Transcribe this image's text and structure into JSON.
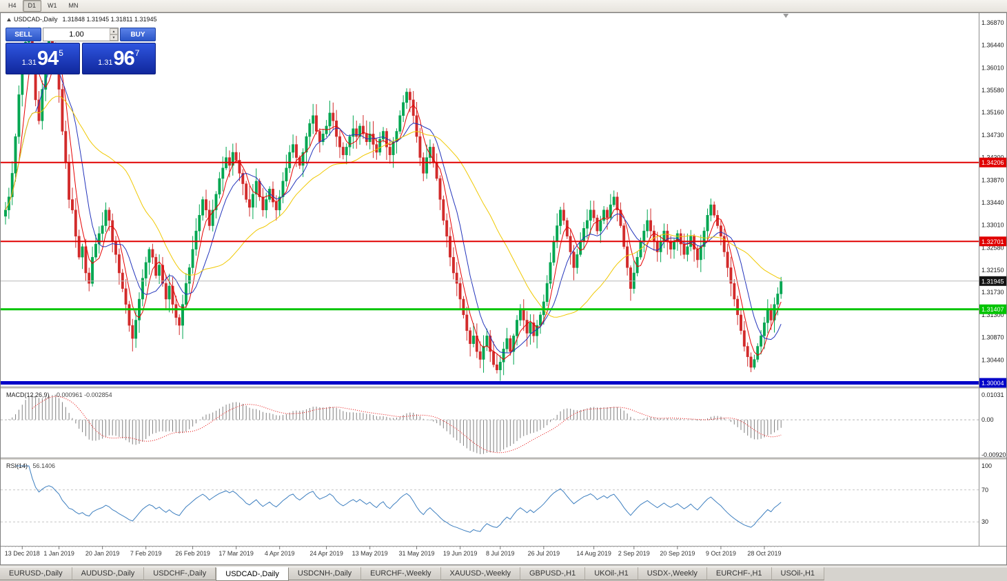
{
  "window": {
    "timeframes": [
      "H4",
      "D1",
      "W1",
      "MN"
    ],
    "active_timeframe": "D1"
  },
  "chart": {
    "title": "USDCAD-,Daily",
    "ohlc": "1.31848 1.31945 1.31811 1.31945"
  },
  "trade_panel": {
    "sell_label": "SELL",
    "buy_label": "BUY",
    "volume": "1.00",
    "sell_price": {
      "prefix": "1.31",
      "main": "94",
      "sup": "5"
    },
    "buy_price": {
      "prefix": "1.31",
      "main": "96",
      "sup": "7"
    }
  },
  "price_axis": {
    "ticks": [
      "1.36870",
      "1.36440",
      "1.36010",
      "1.35580",
      "1.35160",
      "1.34730",
      "1.34300",
      "1.33870",
      "1.33440",
      "1.33010",
      "1.32580",
      "1.32150",
      "1.31730",
      "1.31300",
      "1.30870",
      "1.30440"
    ]
  },
  "levels": [
    {
      "label": "1.34206",
      "price": 1.34206,
      "color": "#e00000",
      "width": 2,
      "text": "#ffffff"
    },
    {
      "label": "1.32701",
      "price": 1.32701,
      "color": "#e00000",
      "width": 2,
      "text": "#ffffff"
    },
    {
      "label": "1.31407",
      "price": 1.31407,
      "color": "#00c400",
      "width": 3,
      "text": "#ffffff"
    },
    {
      "label": "1.30004",
      "price": 1.30004,
      "color": "#0000c8",
      "width": 5,
      "text": "#ffffff"
    }
  ],
  "current_price": {
    "label": "1.31945",
    "price": 1.31945,
    "line_color": "#b8b8b8",
    "tag_color": "#141414"
  },
  "chart_data": {
    "type": "candlestick",
    "symbol": "USDCAD",
    "timeframe": "Daily",
    "ylim": [
      1.298,
      1.37
    ],
    "wick_seed": 11,
    "colors": {
      "up": "#00a651",
      "down": "#d22b2b",
      "macd_main": "#7f7f7f",
      "macd_signal": "#e60000",
      "rsi": "#3c7ebf"
    },
    "moving_averages": [
      {
        "period": 5,
        "color": "#e60000"
      },
      {
        "period": 10,
        "color": "#2233bb"
      },
      {
        "period": 34,
        "color": "#f0c800"
      }
    ],
    "closes": [
      1.333,
      1.3355,
      1.34,
      1.347,
      1.355,
      1.361,
      1.365,
      1.366,
      1.36,
      1.354,
      1.35,
      1.356,
      1.362,
      1.3655,
      1.364,
      1.36,
      1.356,
      1.348,
      1.342,
      1.335,
      1.333,
      1.328,
      1.324,
      1.326,
      1.321,
      1.319,
      1.324,
      1.3265,
      1.3285,
      1.33,
      1.333,
      1.331,
      1.327,
      1.3245,
      1.321,
      1.318,
      1.315,
      1.311,
      1.3085,
      1.312,
      1.316,
      1.32,
      1.323,
      1.3255,
      1.324,
      1.3205,
      1.3225,
      1.319,
      1.316,
      1.3185,
      1.315,
      1.3125,
      1.311,
      1.315,
      1.319,
      1.322,
      1.3255,
      1.329,
      1.332,
      1.335,
      1.333,
      1.33,
      1.333,
      1.336,
      1.339,
      1.341,
      1.343,
      1.3415,
      1.344,
      1.3425,
      1.34,
      1.338,
      1.335,
      1.3335,
      1.336,
      1.3385,
      1.3355,
      1.333,
      1.335,
      1.337,
      1.3345,
      1.333,
      1.3355,
      1.3385,
      1.341,
      1.344,
      1.3455,
      1.343,
      1.3415,
      1.344,
      1.347,
      1.3495,
      1.351,
      1.348,
      1.346,
      1.3475,
      1.349,
      1.3515,
      1.35,
      1.347,
      1.345,
      1.3435,
      1.345,
      1.347,
      1.3485,
      1.347,
      1.349,
      1.3475,
      1.346,
      1.3475,
      1.3455,
      1.344,
      1.3465,
      1.348,
      1.345,
      1.3435,
      1.346,
      1.348,
      1.351,
      1.3535,
      1.3555,
      1.354,
      1.351,
      1.347,
      1.343,
      1.34,
      1.343,
      1.345,
      1.342,
      1.339,
      1.335,
      1.331,
      1.328,
      1.324,
      1.321,
      1.319,
      1.316,
      1.313,
      1.31,
      1.3075,
      1.309,
      1.306,
      1.3045,
      1.307,
      1.309,
      1.306,
      1.3035,
      1.3025,
      1.304,
      1.3065,
      1.3085,
      1.306,
      1.309,
      1.312,
      1.314,
      1.312,
      1.3095,
      1.3115,
      1.309,
      1.311,
      1.313,
      1.3155,
      1.319,
      1.323,
      1.327,
      1.33,
      1.333,
      1.331,
      1.328,
      1.325,
      1.322,
      1.3245,
      1.327,
      1.3295,
      1.331,
      1.333,
      1.3315,
      1.329,
      1.331,
      1.333,
      1.3315,
      1.334,
      1.3355,
      1.333,
      1.33,
      1.326,
      1.322,
      1.318,
      1.321,
      1.324,
      1.327,
      1.329,
      1.331,
      1.329,
      1.327,
      1.325,
      1.327,
      1.329,
      1.327,
      1.3255,
      1.327,
      1.3285,
      1.3265,
      1.3245,
      1.326,
      1.328,
      1.3255,
      1.3235,
      1.326,
      1.329,
      1.332,
      1.334,
      1.332,
      1.33,
      1.328,
      1.325,
      1.322,
      1.319,
      1.316,
      1.313,
      1.31,
      1.307,
      1.305,
      1.303,
      1.3045,
      1.307,
      1.309,
      1.3115,
      1.314,
      1.312,
      1.315,
      1.317,
      1.31945
    ],
    "x_labels": [
      {
        "text": "13 Dec 2018",
        "i": 5
      },
      {
        "text": "1 Jan 2019",
        "i": 16
      },
      {
        "text": "20 Jan 2019",
        "i": 29
      },
      {
        "text": "7 Feb 2019",
        "i": 42
      },
      {
        "text": "26 Feb 2019",
        "i": 56
      },
      {
        "text": "17 Mar 2019",
        "i": 69
      },
      {
        "text": "4 Apr 2019",
        "i": 82
      },
      {
        "text": "24 Apr 2019",
        "i": 96
      },
      {
        "text": "13 May 2019",
        "i": 109
      },
      {
        "text": "31 May 2019",
        "i": 123
      },
      {
        "text": "19 Jun 2019",
        "i": 136
      },
      {
        "text": "8 Jul 2019",
        "i": 148
      },
      {
        "text": "26 Jul 2019",
        "i": 161
      },
      {
        "text": "14 Aug 2019",
        "i": 176
      },
      {
        "text": "2 Sep 2019",
        "i": 188
      },
      {
        "text": "20 Sep 2019",
        "i": 201
      },
      {
        "text": "9 Oct 2019",
        "i": 214
      },
      {
        "text": "28 Oct 2019",
        "i": 227
      }
    ]
  },
  "macd": {
    "title": "MACD(12,26,9)",
    "values": "-0.000961 -0.002854",
    "axis_top": "0.01031",
    "axis_zero": "0.00",
    "axis_bottom": "-0.00920",
    "params": {
      "fast": 12,
      "slow": 26,
      "signal": 9
    }
  },
  "rsi": {
    "title": "RSI(14)",
    "value": "56.1406",
    "period": 14,
    "axis": [
      "100",
      "70",
      "30"
    ],
    "levels": [
      70,
      30
    ]
  },
  "tabs": {
    "items": [
      "EURUSD-,Daily",
      "AUDUSD-,Daily",
      "USDCHF-,Daily",
      "USDCAD-,Daily",
      "USDCNH-,Daily",
      "EURCHF-,Weekly",
      "XAUUSD-,Weekly",
      "GBPUSD-,H1",
      "UKOil-,H1",
      "USDX-,Weekly",
      "EURCHF-,H1",
      "USOil-,H1"
    ],
    "active": "USDCAD-,Daily"
  }
}
